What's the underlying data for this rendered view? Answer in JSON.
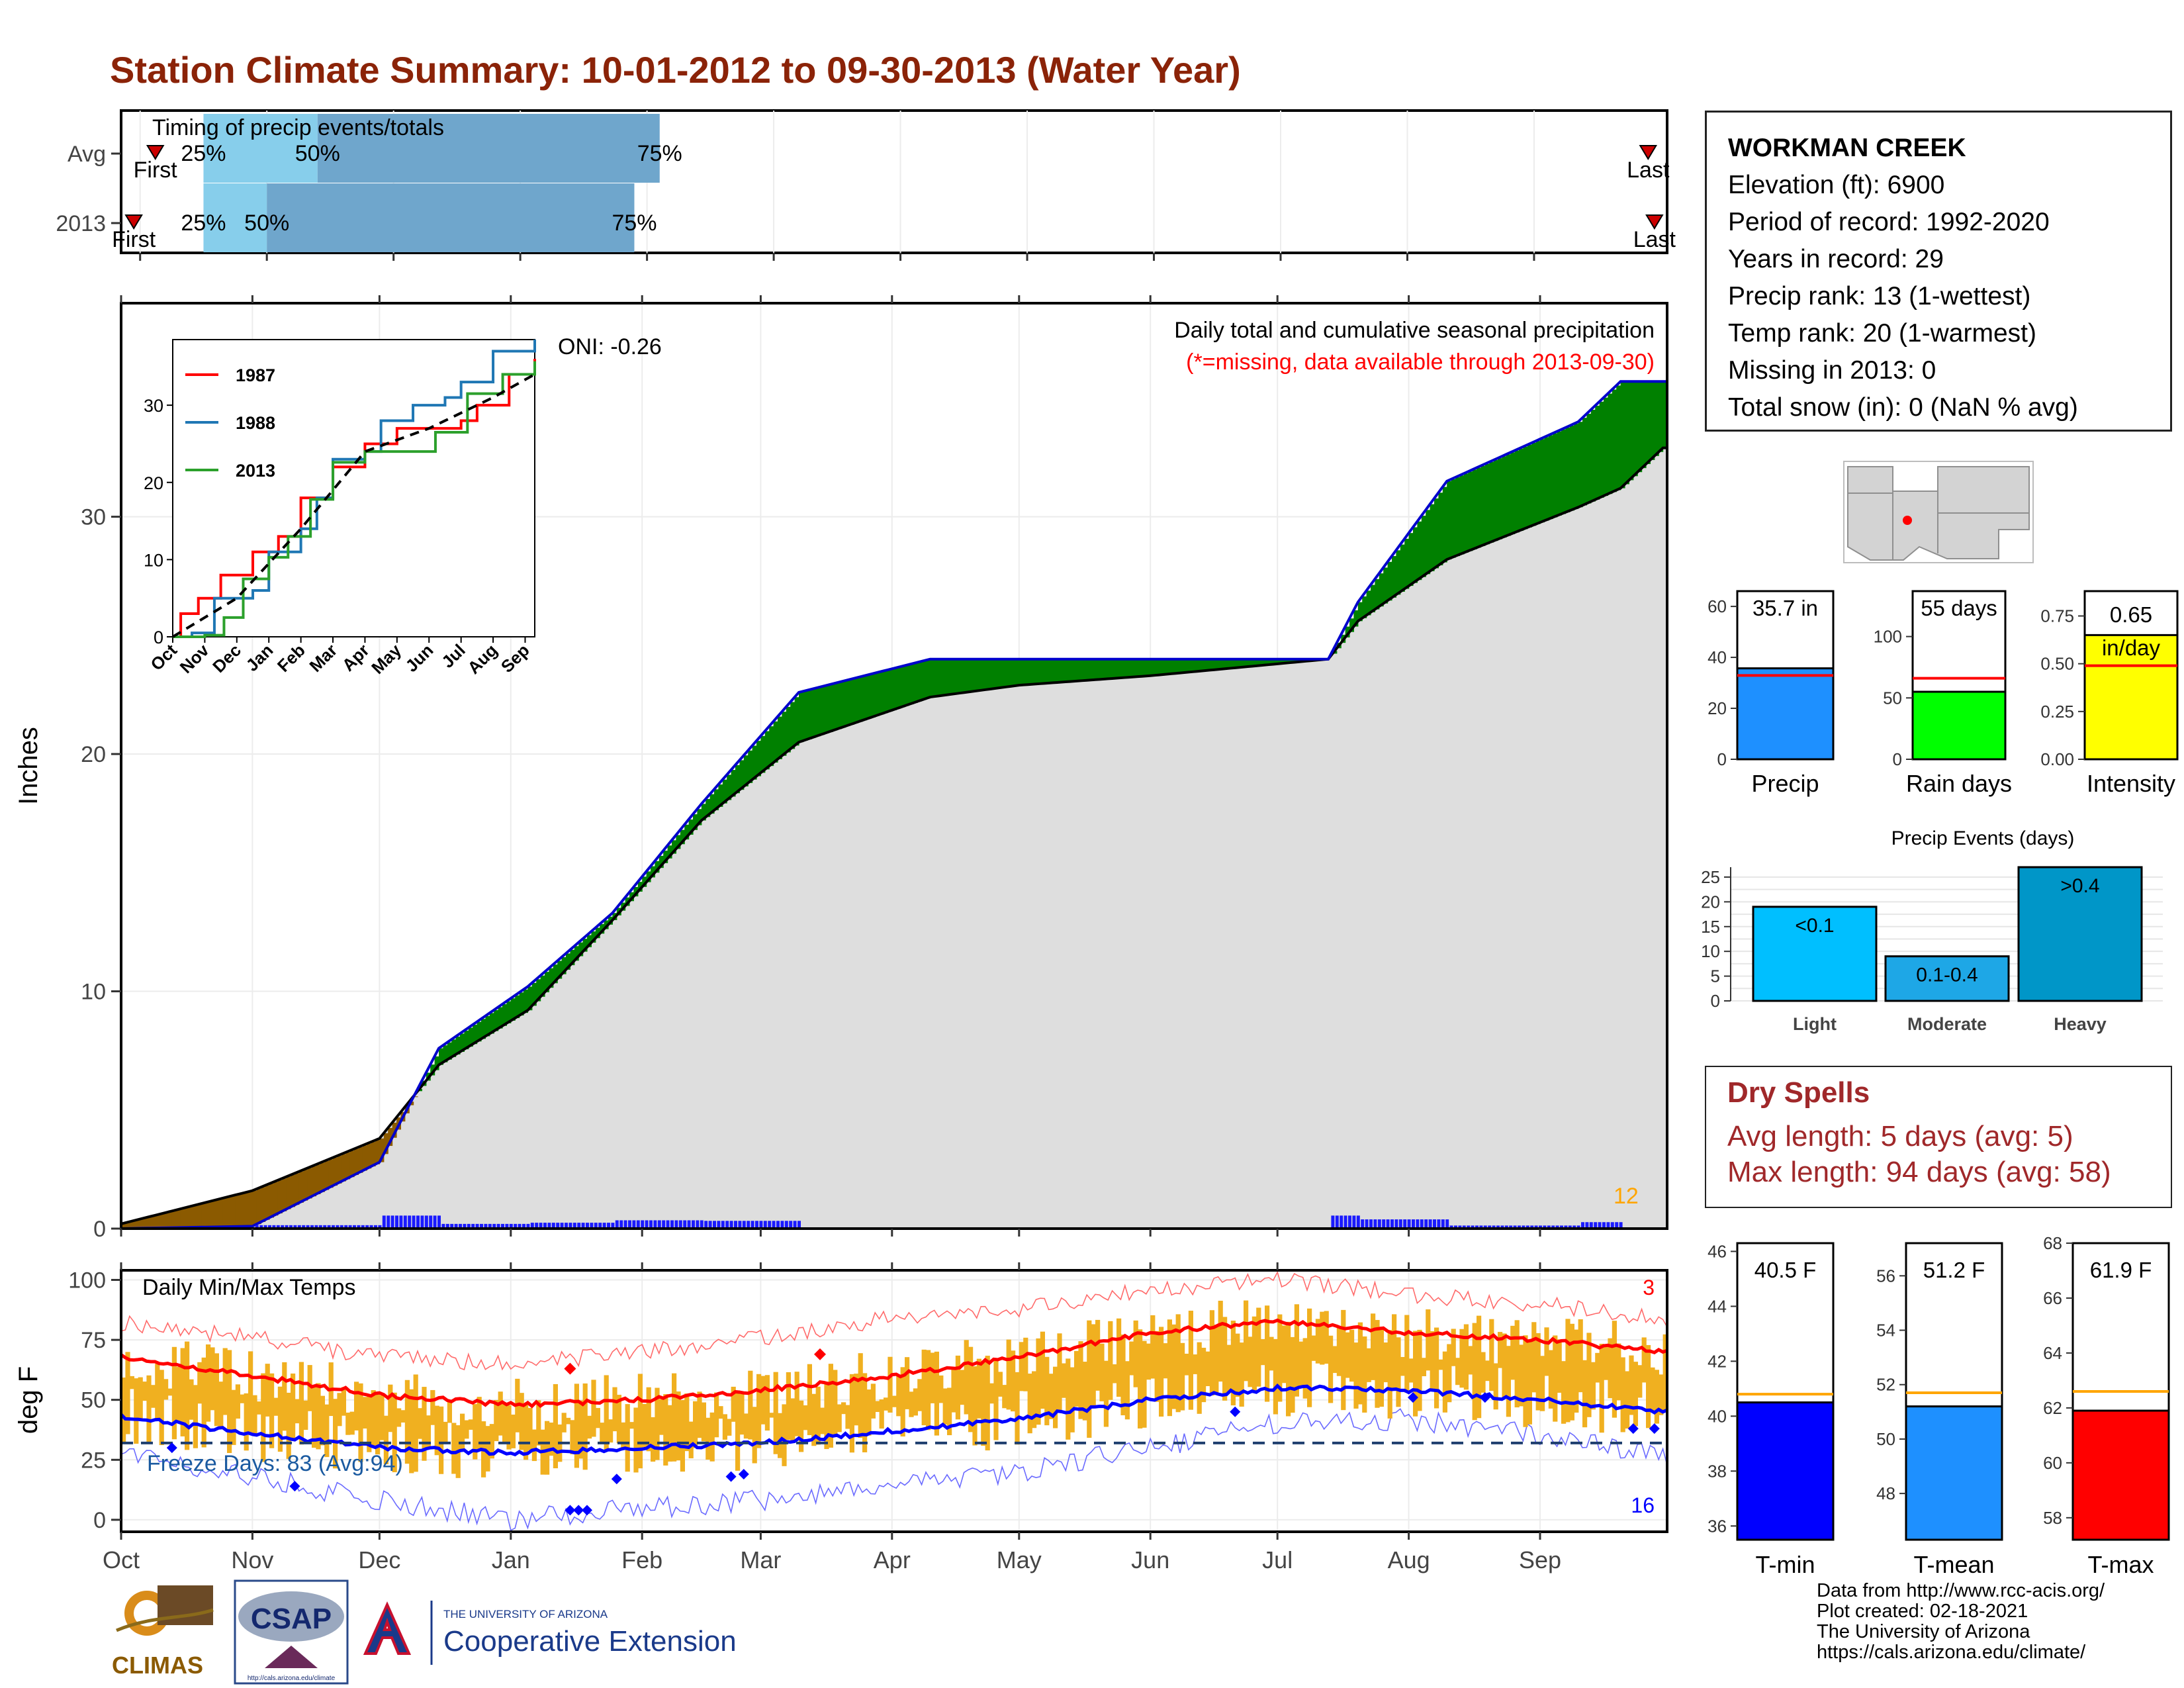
{
  "title": "Station Climate Summary: 10-01-2012 to 09-30-2013 (Water Year)",
  "colors": {
    "title": "#8b2308",
    "avg_precip": "#dedede",
    "wetter": "#008000",
    "drier": "#8b5a00",
    "obs_line": "#0000cc",
    "timing_light": "#87ceeb",
    "timing_dark": "#6fa6cc",
    "temp_bar": "#f0b020",
    "tmax": "#ff0000",
    "tmin": "#0000ff",
    "precip_bar": "#1e90ff",
    "rain_bar": "#00ff00",
    "intensity_bar": "#ffff00",
    "event_bar_light": "#00bfff",
    "event_bar_mid": "#1ea7e6",
    "event_bar_heavy": "#0096c8",
    "tmean_bar": "#1e90ff",
    "dry_spells": "#a0282a"
  },
  "timing": {
    "label": "Timing of precip events/totals",
    "rows": [
      {
        "label": "Avg",
        "first_label": "First",
        "last_label": "Last",
        "first": 0.12,
        "q25": 0.5,
        "q50": 1.4,
        "q75": 4.1,
        "last": 11.9
      },
      {
        "label": "2013",
        "first_label": "First",
        "last_label": "Last",
        "first": -0.05,
        "q25": 0.5,
        "q50": 1.0,
        "q75": 3.9,
        "last": 11.95
      }
    ],
    "q_labels": [
      "25%",
      "50%",
      "75%"
    ]
  },
  "precip_panel": {
    "ylabel": "Inches",
    "oni": "ONI: -0.26",
    "subtitle": "Daily total and cumulative seasonal precipitation",
    "missing_note": "(*=missing, data available through 2013-09-30)",
    "count_label": "12",
    "yticks": [
      0,
      10,
      20,
      30
    ]
  },
  "inset": {
    "series": [
      {
        "name": "1987",
        "color": "#ff0000"
      },
      {
        "name": "1988",
        "color": "#1f77b4"
      },
      {
        "name": "2013",
        "color": "#2ca02c"
      }
    ],
    "xticks": [
      "Oct",
      "Nov",
      "Dec",
      "Jan",
      "Feb",
      "Mar",
      "Apr",
      "May",
      "Jun",
      "Jul",
      "Aug",
      "Sep"
    ],
    "yticks": [
      0,
      10,
      20,
      30
    ]
  },
  "temp_panel": {
    "ylabel": "deg F",
    "label": "Daily Min/Max Temps",
    "freeze": "Freeze Days: 83 (Avg:94)",
    "record_high_count": "3",
    "record_low_count": "16",
    "yticks": [
      0,
      25,
      50,
      75,
      100
    ],
    "xticks": [
      "Oct",
      "Nov",
      "Dec",
      "Jan",
      "Feb",
      "Mar",
      "Apr",
      "May",
      "Jun",
      "Jul",
      "Aug",
      "Sep"
    ]
  },
  "station": {
    "name": "WORKMAN CREEK",
    "lines": [
      "Elevation (ft): 6900",
      "Period of record: 1992-2020",
      "Years in record: 29",
      "Precip rank: 13 (1-wettest)",
      "Temp rank: 20 (1-warmest)",
      "Missing in 2013: 0",
      "Total snow (in): 0 (NaN % avg)"
    ]
  },
  "summary_bars": [
    {
      "label": "Precip",
      "value_label": "35.7 in",
      "value": 35.7,
      "avg": 32.9,
      "ymax": 66,
      "yticks": [
        "0",
        "20",
        "40",
        "60"
      ],
      "tick_values": [
        0,
        20,
        40,
        60
      ],
      "color": "#1e90ff"
    },
    {
      "label": "Rain days",
      "value_label": "55 days",
      "value": 55,
      "avg": 66,
      "ymax": 137,
      "yticks": [
        "0",
        "50",
        "100"
      ],
      "tick_values": [
        0,
        50,
        100
      ],
      "color": "#00ff00"
    },
    {
      "label": "Intensity",
      "value_label": "0.65 in/day",
      "value": 0.65,
      "avg": 0.49,
      "ymax": 0.88,
      "yticks": [
        "0.00",
        "0.25",
        "0.50",
        "0.75"
      ],
      "tick_values": [
        0,
        0.25,
        0.5,
        0.75
      ],
      "color": "#ffff00"
    }
  ],
  "events": {
    "title": "Precip Events (days)",
    "categories": [
      "Light",
      "Moderate",
      "Heavy"
    ],
    "bar_labels": [
      "<0.1",
      "0.1-0.4",
      ">0.4"
    ],
    "values": [
      19,
      9,
      27
    ],
    "yticks": [
      0,
      5,
      10,
      15,
      20,
      25
    ]
  },
  "dry_spells": {
    "title": "Dry Spells",
    "avg": "Avg length: 5 days (avg: 5)",
    "max": "Max length: 94 days (avg: 58)"
  },
  "temp_bars": [
    {
      "label": "T-min",
      "value_label": "40.5 F",
      "value": 40.5,
      "avg": 40.8,
      "ymin": 35.5,
      "ymax": 46.3,
      "tick_values": [
        36,
        38,
        40,
        42,
        44,
        46
      ],
      "color": "#0000ff"
    },
    {
      "label": "T-mean",
      "value_label": "51.2 F",
      "value": 51.2,
      "avg": 51.7,
      "ymin": 46.3,
      "ymax": 57.2,
      "tick_values": [
        48,
        50,
        52,
        54,
        56
      ],
      "color": "#1e90ff"
    },
    {
      "label": "T-max",
      "value_label": "61.9 F",
      "value": 61.9,
      "avg": 62.6,
      "ymin": 57.2,
      "ymax": 68.0,
      "tick_values": [
        58,
        60,
        62,
        64,
        66,
        68
      ],
      "color": "#ff0000"
    }
  ],
  "logos": {
    "climas": "CLIMAS",
    "csap": "CSAP",
    "csap_url": "http://cals.arizona.edu/climate",
    "ua_small": "THE UNIVERSITY OF ARIZONA",
    "ua_big": "Cooperative Extension"
  },
  "credits": [
    "Data from http://www.rcc-acis.org/",
    "Plot created: 02-18-2021",
    "The University of Arizona",
    "https://cals.arizona.edu/climate/"
  ],
  "chart_data": [
    {
      "type": "area",
      "title": "Daily total and cumulative seasonal precipitation",
      "ylabel": "Inches",
      "ylim": [
        0,
        39
      ],
      "x": [
        "10-01",
        "11-01",
        "12-01",
        "12-15",
        "01-05",
        "01-25",
        "02-15",
        "03-10",
        "04-10",
        "05-01",
        "06-01",
        "07-01",
        "07-13",
        "07-20",
        "08-10",
        "09-10",
        "09-20",
        "09-30"
      ],
      "series": [
        {
          "name": "2013",
          "values": [
            0,
            0.1,
            2.8,
            7.6,
            10.2,
            13.3,
            17.9,
            22.6,
            24.0,
            24.0,
            24.0,
            24.0,
            24.0,
            26.4,
            31.5,
            34.0,
            35.7,
            35.7
          ]
        },
        {
          "values": [
            0.2,
            1.6,
            3.8,
            6.9,
            9.2,
            13.0,
            17.2,
            20.5,
            22.4,
            22.9,
            23.3,
            23.8,
            24.0,
            25.6,
            28.2,
            30.4,
            31.2,
            32.9
          ]
        }
      ]
    },
    {
      "type": "bar",
      "title": "Precip Events (days)",
      "categories": [
        "Light",
        "Moderate",
        "Heavy"
      ],
      "values": [
        19,
        9,
        27
      ],
      "ylim": [
        0,
        27
      ]
    }
  ]
}
